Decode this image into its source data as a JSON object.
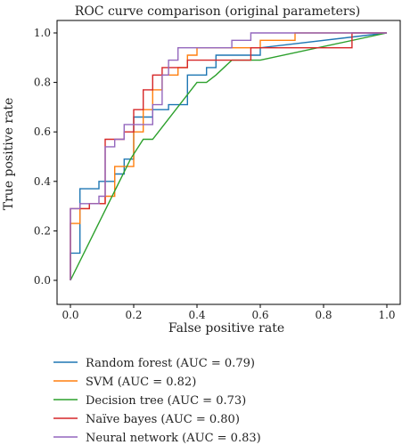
{
  "chart_data": {
    "type": "line",
    "title": "ROC curve comparison (original parameters)",
    "xlabel": "False positive rate",
    "ylabel": "True positive rate",
    "xlim": [
      0,
      1
    ],
    "ylim": [
      0,
      1
    ],
    "xticks": [
      0.0,
      0.2,
      0.4,
      0.6,
      0.8,
      1.0
    ],
    "yticks": [
      0.0,
      0.2,
      0.4,
      0.6,
      0.8,
      1.0
    ],
    "xtick_labels": [
      "0.0",
      "0.2",
      "0.4",
      "0.6",
      "0.8",
      "1.0"
    ],
    "ytick_labels": [
      "0.0",
      "0.2",
      "0.4",
      "0.6",
      "0.8",
      "1.0"
    ],
    "grid": false,
    "legend_position": "below",
    "series": [
      {
        "name": "Random forest (AUC = 0.79)",
        "color": "#1f77b4",
        "points": [
          [
            0,
            0
          ],
          [
            0,
            0.11
          ],
          [
            0.03,
            0.11
          ],
          [
            0.03,
            0.37
          ],
          [
            0.09,
            0.37
          ],
          [
            0.09,
            0.4
          ],
          [
            0.14,
            0.4
          ],
          [
            0.14,
            0.43
          ],
          [
            0.17,
            0.43
          ],
          [
            0.17,
            0.49
          ],
          [
            0.2,
            0.49
          ],
          [
            0.2,
            0.66
          ],
          [
            0.26,
            0.66
          ],
          [
            0.26,
            0.69
          ],
          [
            0.31,
            0.69
          ],
          [
            0.31,
            0.71
          ],
          [
            0.37,
            0.71
          ],
          [
            0.37,
            0.83
          ],
          [
            0.43,
            0.83
          ],
          [
            0.43,
            0.86
          ],
          [
            0.46,
            0.86
          ],
          [
            0.46,
            0.91
          ],
          [
            0.6,
            0.91
          ],
          [
            0.6,
            0.94
          ],
          [
            1,
            1
          ]
        ]
      },
      {
        "name": "SVM (AUC = 0.82)",
        "color": "#ff7f0e",
        "points": [
          [
            0,
            0
          ],
          [
            0,
            0.23
          ],
          [
            0.03,
            0.23
          ],
          [
            0.03,
            0.29
          ],
          [
            0.06,
            0.29
          ],
          [
            0.06,
            0.31
          ],
          [
            0.11,
            0.31
          ],
          [
            0.11,
            0.34
          ],
          [
            0.14,
            0.34
          ],
          [
            0.14,
            0.46
          ],
          [
            0.2,
            0.46
          ],
          [
            0.2,
            0.6
          ],
          [
            0.23,
            0.6
          ],
          [
            0.23,
            0.69
          ],
          [
            0.26,
            0.69
          ],
          [
            0.26,
            0.77
          ],
          [
            0.29,
            0.77
          ],
          [
            0.29,
            0.83
          ],
          [
            0.34,
            0.83
          ],
          [
            0.34,
            0.86
          ],
          [
            0.37,
            0.86
          ],
          [
            0.37,
            0.91
          ],
          [
            0.4,
            0.91
          ],
          [
            0.4,
            0.94
          ],
          [
            0.6,
            0.94
          ],
          [
            0.6,
            0.97
          ],
          [
            0.71,
            0.97
          ],
          [
            0.71,
            1
          ],
          [
            1,
            1
          ]
        ]
      },
      {
        "name": "Decision tree (AUC = 0.73)",
        "color": "#2ca02c",
        "points": [
          [
            0,
            0
          ],
          [
            0.19,
            0.49
          ],
          [
            0.23,
            0.57
          ],
          [
            0.26,
            0.57
          ],
          [
            0.4,
            0.8
          ],
          [
            0.43,
            0.8
          ],
          [
            0.46,
            0.83
          ],
          [
            0.51,
            0.89
          ],
          [
            0.6,
            0.89
          ],
          [
            1,
            1
          ]
        ]
      },
      {
        "name": "Naïve bayes (AUC = 0.80)",
        "color": "#d62728",
        "points": [
          [
            0,
            0
          ],
          [
            0,
            0.29
          ],
          [
            0.06,
            0.29
          ],
          [
            0.06,
            0.31
          ],
          [
            0.11,
            0.31
          ],
          [
            0.11,
            0.57
          ],
          [
            0.17,
            0.57
          ],
          [
            0.17,
            0.6
          ],
          [
            0.2,
            0.6
          ],
          [
            0.2,
            0.69
          ],
          [
            0.23,
            0.69
          ],
          [
            0.23,
            0.77
          ],
          [
            0.26,
            0.77
          ],
          [
            0.26,
            0.83
          ],
          [
            0.29,
            0.83
          ],
          [
            0.29,
            0.86
          ],
          [
            0.37,
            0.86
          ],
          [
            0.37,
            0.89
          ],
          [
            0.57,
            0.89
          ],
          [
            0.57,
            0.94
          ],
          [
            0.89,
            0.94
          ],
          [
            0.89,
            1
          ],
          [
            1,
            1
          ]
        ]
      },
      {
        "name": "Neural network (AUC = 0.83)",
        "color": "#9467bd",
        "points": [
          [
            0,
            0
          ],
          [
            0,
            0.29
          ],
          [
            0.03,
            0.29
          ],
          [
            0.03,
            0.31
          ],
          [
            0.09,
            0.31
          ],
          [
            0.09,
            0.34
          ],
          [
            0.11,
            0.34
          ],
          [
            0.11,
            0.54
          ],
          [
            0.14,
            0.54
          ],
          [
            0.14,
            0.57
          ],
          [
            0.17,
            0.57
          ],
          [
            0.17,
            0.63
          ],
          [
            0.26,
            0.63
          ],
          [
            0.26,
            0.71
          ],
          [
            0.29,
            0.71
          ],
          [
            0.29,
            0.83
          ],
          [
            0.31,
            0.83
          ],
          [
            0.31,
            0.89
          ],
          [
            0.34,
            0.89
          ],
          [
            0.34,
            0.94
          ],
          [
            0.51,
            0.94
          ],
          [
            0.51,
            0.97
          ],
          [
            0.57,
            0.97
          ],
          [
            0.57,
            1
          ],
          [
            1,
            1
          ]
        ]
      }
    ]
  }
}
